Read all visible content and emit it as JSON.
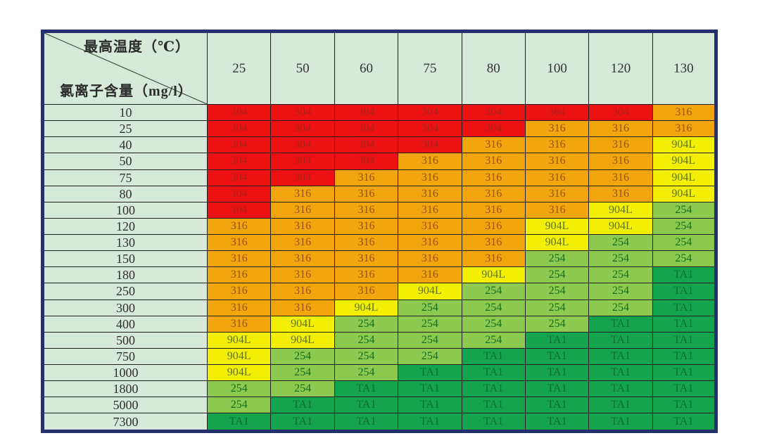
{
  "table": {
    "corner": {
      "top_label": "最高温度（℃）",
      "bottom_label": "氯离子含量（mg/l）"
    }
  },
  "materials": {
    "304": {
      "bg": "#ee1111",
      "fg": "#a6231b"
    },
    "316": {
      "bg": "#f2a50c",
      "fg": "#99520a"
    },
    "904L": {
      "bg": "#f2ef04",
      "fg": "#5f7517"
    },
    "254": {
      "bg": "#8cc94e",
      "fg": "#156f22"
    },
    "TA1": {
      "bg": "#14a44e",
      "fg": "#0b6e33"
    }
  },
  "chart_data": {
    "type": "heatmap",
    "title": "",
    "xlabel": "最高温度（℃）",
    "ylabel": "氯离子含量（mg/l）",
    "legend_entries": [
      "304",
      "316",
      "904L",
      "254",
      "TA1"
    ],
    "grid": true,
    "x": [
      "25",
      "50",
      "60",
      "75",
      "80",
      "100",
      "120",
      "130"
    ],
    "y": [
      "10",
      "25",
      "40",
      "50",
      "75",
      "80",
      "100",
      "120",
      "130",
      "150",
      "180",
      "250",
      "300",
      "400",
      "500",
      "750",
      "1000",
      "1800",
      "5000",
      "7300"
    ],
    "values": [
      [
        "304",
        "304",
        "304",
        "304",
        "304",
        "304",
        "304",
        "316"
      ],
      [
        "304",
        "304",
        "304",
        "304",
        "304",
        "316",
        "316",
        "316"
      ],
      [
        "304",
        "304",
        "304",
        "304",
        "316",
        "316",
        "316",
        "904L"
      ],
      [
        "304",
        "304",
        "304",
        "316",
        "316",
        "316",
        "316",
        "904L"
      ],
      [
        "304",
        "304",
        "316",
        "316",
        "316",
        "316",
        "316",
        "904L"
      ],
      [
        "304",
        "316",
        "316",
        "316",
        "316",
        "316",
        "316",
        "904L"
      ],
      [
        "304",
        "316",
        "316",
        "316",
        "316",
        "316",
        "904L",
        "254"
      ],
      [
        "316",
        "316",
        "316",
        "316",
        "316",
        "904L",
        "904L",
        "254"
      ],
      [
        "316",
        "316",
        "316",
        "316",
        "316",
        "904L",
        "254",
        "254"
      ],
      [
        "316",
        "316",
        "316",
        "316",
        "316",
        "254",
        "254",
        "254"
      ],
      [
        "316",
        "316",
        "316",
        "316",
        "904L",
        "254",
        "254",
        "TA1"
      ],
      [
        "316",
        "316",
        "316",
        "904L",
        "254",
        "254",
        "254",
        "TA1"
      ],
      [
        "316",
        "316",
        "904L",
        "254",
        "254",
        "254",
        "254",
        "TA1"
      ],
      [
        "316",
        "904L",
        "254",
        "254",
        "254",
        "254",
        "TA1",
        "TA1"
      ],
      [
        "904L",
        "904L",
        "254",
        "254",
        "254",
        "TA1",
        "TA1",
        "TA1"
      ],
      [
        "904L",
        "254",
        "254",
        "254",
        "TA1",
        "TA1",
        "TA1",
        "TA1"
      ],
      [
        "904L",
        "254",
        "254",
        "TA1",
        "TA1",
        "TA1",
        "TA1",
        "TA1"
      ],
      [
        "254",
        "254",
        "TA1",
        "TA1",
        "TA1",
        "TA1",
        "TA1",
        "TA1"
      ],
      [
        "254",
        "TA1",
        "TA1",
        "TA1",
        "TA1",
        "TA1",
        "TA1",
        "TA1"
      ],
      [
        "TA1",
        "TA1",
        "TA1",
        "TA1",
        "TA1",
        "TA1",
        "TA1",
        "TA1"
      ]
    ]
  }
}
